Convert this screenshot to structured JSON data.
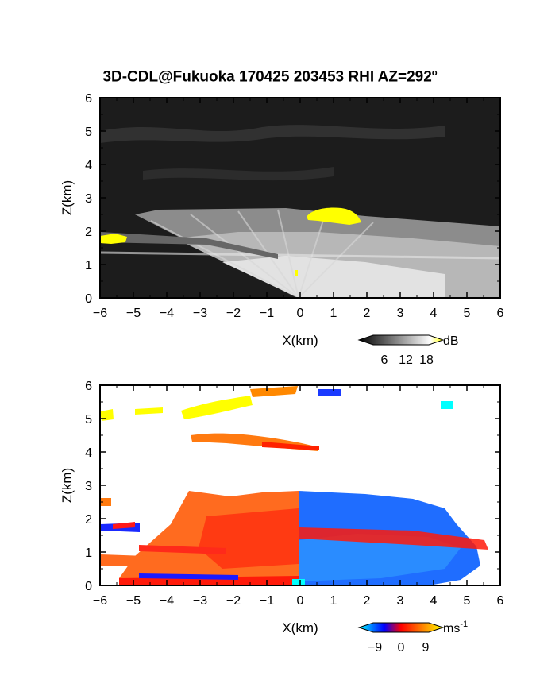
{
  "title": "3D-CDL@Fukuoka 170425 203453 RHI AZ=292",
  "title_degree": "o",
  "chart_data": [
    {
      "type": "heatmap",
      "variable": "reflectivity",
      "xlabel": "X(km)",
      "ylabel": "Z(km)",
      "xlim": [
        -6,
        6
      ],
      "ylim": [
        0,
        6
      ],
      "xticks": [
        "-6",
        "-5",
        "-4",
        "-3",
        "-2",
        "-1",
        "0",
        "1",
        "2",
        "3",
        "4",
        "5",
        "6"
      ],
      "yticks": [
        "0",
        "1",
        "2",
        "3",
        "4",
        "5",
        "6"
      ],
      "colorbar": {
        "unit": "dB",
        "ticks": [
          "6",
          "12",
          "18"
        ],
        "colors": [
          "#000000",
          "#ffffff",
          "#ffff00"
        ]
      },
      "features": [
        {
          "x": [
            -6,
            6
          ],
          "z": [
            0,
            6
          ],
          "color": "#1a1a1a"
        },
        {
          "x": [
            -5.7,
            -3.2
          ],
          "z": [
            1.7,
            1.85
          ],
          "color": "#ffff00"
        },
        {
          "x": [
            0.3,
            1.9
          ],
          "z": [
            2.3,
            2.6
          ],
          "color": "#ffff00"
        },
        {
          "x": [
            -4,
            6
          ],
          "z": [
            0,
            2.7
          ],
          "color": "#cfcfcf"
        }
      ]
    },
    {
      "type": "heatmap",
      "variable": "doppler velocity",
      "xlabel": "X(km)",
      "ylabel": "Z(km)",
      "xlim": [
        -6,
        6
      ],
      "ylim": [
        0,
        6
      ],
      "xticks": [
        "-6",
        "-5",
        "-4",
        "-3",
        "-2",
        "-1",
        "0",
        "1",
        "2",
        "3",
        "4",
        "5",
        "6"
      ],
      "yticks": [
        "0",
        "1",
        "2",
        "3",
        "4",
        "5",
        "6"
      ],
      "colorbar": {
        "unit": "ms",
        "unit_exp": "-1",
        "ticks": [
          "-9",
          "0",
          "9"
        ],
        "colors": [
          "#00ffff",
          "#0000ff",
          "#ff0000",
          "#ffff00"
        ]
      },
      "features": [
        {
          "x": [
            -4.2,
            0
          ],
          "z": [
            0.1,
            2.8
          ],
          "color": "#ff5a1a"
        },
        {
          "x": [
            0,
            4.8
          ],
          "z": [
            0.1,
            2.8
          ],
          "color": "#1a6aff"
        },
        {
          "x": [
            -6,
            -4.5
          ],
          "z": [
            1.6,
            1.9
          ],
          "color": "#ff0000"
        },
        {
          "x": [
            -3.5,
            -1.5
          ],
          "z": [
            5.1,
            5.5
          ],
          "color": "#ffff00"
        },
        {
          "x": [
            -1.5,
            0.6
          ],
          "z": [
            4.1,
            4.5
          ],
          "color": "#ff3300"
        }
      ]
    }
  ]
}
